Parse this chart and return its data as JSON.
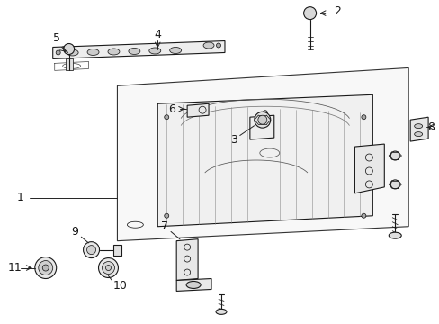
{
  "bg_color": "#ffffff",
  "line_color": "#1a1a1a",
  "label_color": "#111111",
  "lw_main": 1.1,
  "lw_med": 0.8,
  "lw_thin": 0.55
}
